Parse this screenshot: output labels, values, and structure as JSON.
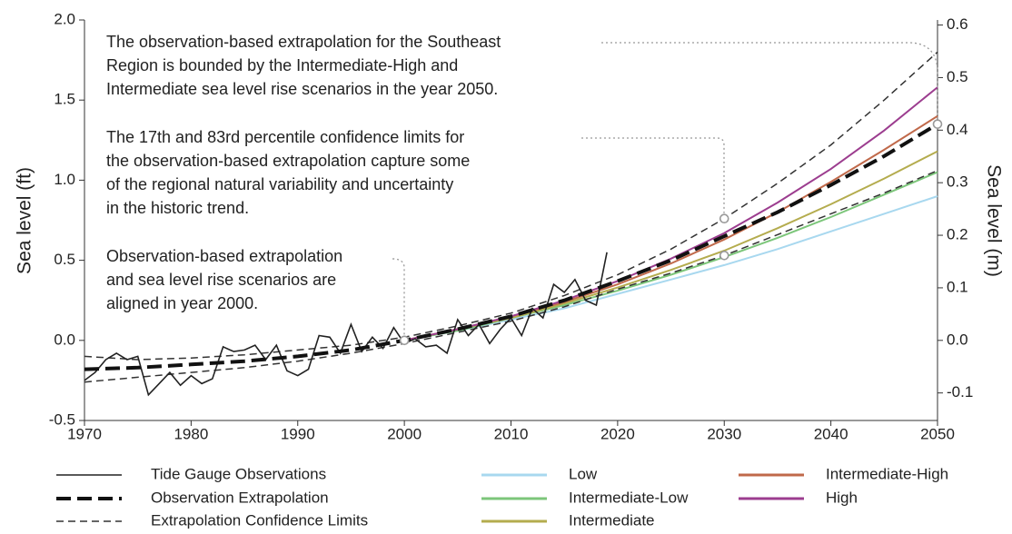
{
  "chart_data": {
    "type": "line",
    "ylabel": "Sea level (ft)",
    "y2label": "Sea level (m)",
    "xlim": [
      1970,
      2050
    ],
    "xticks": [
      1970,
      1980,
      1990,
      2000,
      2010,
      2020,
      2030,
      2040,
      2050
    ],
    "ylim": [
      -0.5,
      2.0
    ],
    "yticks": [
      -0.5,
      {
        "value": 0,
        "label": "0.0"
      },
      0.5,
      {
        "value": 1,
        "label": "1.0"
      },
      1.5,
      {
        "value": 2,
        "label": "2.0"
      }
    ],
    "y2lim": [
      -0.1524,
      0.6096
    ],
    "y2ticks": [
      -0.1,
      {
        "value": 0,
        "label": "0.0"
      },
      0.1,
      0.2,
      0.3,
      0.4,
      0.5,
      0.6
    ],
    "series": [
      {
        "name": "Tide Gauge Observations",
        "color": "#222222",
        "line_style": "solid",
        "x": [
          1970,
          1971,
          1972,
          1973,
          1974,
          1975,
          1976,
          1977,
          1978,
          1979,
          1980,
          1981,
          1982,
          1983,
          1984,
          1985,
          1986,
          1987,
          1988,
          1989,
          1990,
          1991,
          1992,
          1993,
          1994,
          1995,
          1996,
          1997,
          1998,
          1999,
          2000,
          2001,
          2002,
          2003,
          2004,
          2005,
          2006,
          2007,
          2008,
          2009,
          2010,
          2011,
          2012,
          2013,
          2014,
          2015,
          2016,
          2017,
          2018,
          2019
        ],
        "values": [
          -0.25,
          -0.2,
          -0.12,
          -0.08,
          -0.12,
          -0.1,
          -0.34,
          -0.27,
          -0.2,
          -0.28,
          -0.22,
          -0.27,
          -0.24,
          -0.04,
          -0.07,
          -0.06,
          -0.03,
          -0.12,
          -0.03,
          -0.19,
          -0.22,
          -0.18,
          0.03,
          0.02,
          -0.08,
          0.1,
          -0.07,
          0.02,
          -0.05,
          0.08,
          -0.02,
          0.01,
          -0.04,
          -0.03,
          -0.08,
          0.13,
          0.03,
          0.1,
          -0.02,
          0.07,
          0.14,
          0.03,
          0.2,
          0.14,
          0.35,
          0.3,
          0.38,
          0.25,
          0.22,
          0.55
        ]
      },
      {
        "name": "Observation Extrapolation",
        "color": "#111111",
        "line_style": "bold-dashed",
        "x": [
          1970,
          1975,
          1980,
          1985,
          1990,
          1995,
          2000,
          2005,
          2010,
          2015,
          2020,
          2025,
          2030,
          2035,
          2040,
          2045,
          2050
        ],
        "values": [
          -0.18,
          -0.17,
          -0.15,
          -0.13,
          -0.1,
          -0.06,
          0,
          0.07,
          0.15,
          0.25,
          0.37,
          0.5,
          0.65,
          0.8,
          0.97,
          1.15,
          1.35
        ]
      },
      {
        "name": "Extrapolation Confidence Limits",
        "color": "#333333",
        "line_style": "dashed",
        "x": [
          1970,
          1975,
          1980,
          1985,
          1990,
          1995,
          2000,
          2005,
          2010,
          2015,
          2020,
          2025,
          2030,
          2035,
          2040,
          2045,
          2050
        ],
        "upper": [
          -0.1,
          -0.12,
          -0.11,
          -0.09,
          -0.06,
          -0.03,
          0.02,
          0.09,
          0.17,
          0.28,
          0.41,
          0.57,
          0.76,
          0.98,
          1.22,
          1.5,
          1.8
        ],
        "lower": [
          -0.26,
          -0.23,
          -0.2,
          -0.17,
          -0.13,
          -0.08,
          -0.02,
          0.05,
          0.12,
          0.21,
          0.32,
          0.42,
          0.53,
          0.66,
          0.79,
          0.92,
          1.06
        ]
      },
      {
        "name": "Low",
        "color": "#a8d8ef",
        "line_style": "solid",
        "x": [
          2000,
          2005,
          2010,
          2015,
          2020,
          2025,
          2030,
          2035,
          2040,
          2045,
          2050
        ],
        "values": [
          0,
          0.06,
          0.13,
          0.2,
          0.29,
          0.38,
          0.47,
          0.57,
          0.68,
          0.79,
          0.9
        ]
      },
      {
        "name": "Intermediate-Low",
        "color": "#7cc67a",
        "line_style": "solid",
        "x": [
          2000,
          2005,
          2010,
          2015,
          2020,
          2025,
          2030,
          2035,
          2040,
          2045,
          2050
        ],
        "values": [
          0,
          0.06,
          0.14,
          0.22,
          0.31,
          0.41,
          0.52,
          0.64,
          0.77,
          0.91,
          1.05
        ]
      },
      {
        "name": "Intermediate",
        "color": "#b4ac4e",
        "line_style": "solid",
        "x": [
          2000,
          2005,
          2010,
          2015,
          2020,
          2025,
          2030,
          2035,
          2040,
          2045,
          2050
        ],
        "values": [
          0,
          0.07,
          0.14,
          0.23,
          0.33,
          0.44,
          0.56,
          0.7,
          0.85,
          1.01,
          1.18
        ]
      },
      {
        "name": "Intermediate-High",
        "color": "#c0694a",
        "line_style": "solid",
        "x": [
          2000,
          2005,
          2010,
          2015,
          2020,
          2025,
          2030,
          2035,
          2040,
          2045,
          2050
        ],
        "values": [
          0,
          0.07,
          0.15,
          0.24,
          0.35,
          0.48,
          0.63,
          0.8,
          0.99,
          1.19,
          1.4
        ]
      },
      {
        "name": "High",
        "color": "#9c3d8f",
        "line_style": "solid",
        "x": [
          2000,
          2005,
          2010,
          2015,
          2020,
          2025,
          2030,
          2035,
          2040,
          2045,
          2050
        ],
        "values": [
          0,
          0.07,
          0.15,
          0.25,
          0.37,
          0.51,
          0.67,
          0.86,
          1.07,
          1.31,
          1.58
        ]
      }
    ],
    "annotations": [
      {
        "lines": [
          "The observation-based extrapolation for the Southeast",
          "Region is bounded by the Intermediate-High and",
          "Intermediate sea level rise scenarios in the year 2050."
        ]
      },
      {
        "lines": [
          "The 17th and 83rd percentile confidence limits for",
          "the observation-based extrapolation capture some",
          "of the regional natural variability and uncertainty",
          "in the historic trend."
        ]
      },
      {
        "lines": [
          "Observation-based extrapolation",
          "and sea level rise scenarios are",
          "aligned in year 2000."
        ]
      }
    ]
  }
}
